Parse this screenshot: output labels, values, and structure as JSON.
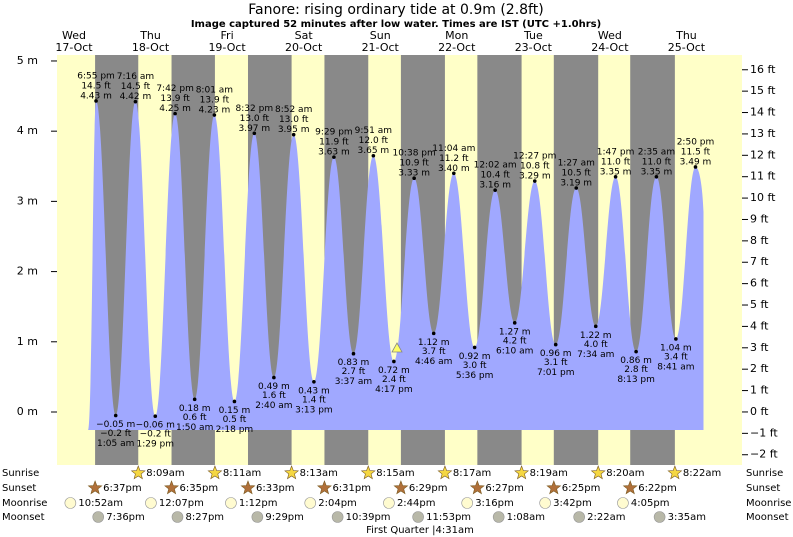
{
  "chart_data": {
    "type": "tide",
    "title": "Fanore: rising  ordinary tide at 0.9m (2.8ft)",
    "subtitle": "Image captured 52 minutes after low water. Times are IST (UTC +1.0hrs)",
    "ylim": [
      -0.755,
      5.085
    ],
    "yticks": [
      {
        "value": 0,
        "label": "0 m"
      },
      {
        "value": 1,
        "label": "1 m"
      },
      {
        "value": 2,
        "label": "2 m"
      },
      {
        "value": 3,
        "label": "3 m"
      },
      {
        "value": 4,
        "label": "4 m"
      },
      {
        "value": 5,
        "label": "5 m"
      }
    ],
    "y2lim": [
      -2.48,
      16.69
    ],
    "y2ticks": [
      {
        "value": -2,
        "label": "−2 ft"
      },
      {
        "value": -1,
        "label": "−1 ft"
      },
      {
        "value": 0,
        "label": "0 ft"
      },
      {
        "value": 1,
        "label": "1 ft"
      },
      {
        "value": 2,
        "label": "2 ft"
      },
      {
        "value": 3,
        "label": "3 ft"
      },
      {
        "value": 4,
        "label": "4 ft"
      },
      {
        "value": 5,
        "label": "5 ft"
      },
      {
        "value": 6,
        "label": "6 ft"
      },
      {
        "value": 7,
        "label": "7 ft"
      },
      {
        "value": 8,
        "label": "8 ft"
      },
      {
        "value": 9,
        "label": "9 ft"
      },
      {
        "value": 10,
        "label": "10 ft"
      },
      {
        "value": 11,
        "label": "11 ft"
      },
      {
        "value": 12,
        "label": "12 ft"
      },
      {
        "value": 13,
        "label": "13 ft"
      },
      {
        "value": 14,
        "label": "14 ft"
      },
      {
        "value": 15,
        "label": "15 ft"
      },
      {
        "value": 16,
        "label": "16 ft"
      }
    ],
    "color": "#a0a8ff",
    "rows": [
      "Sunrise",
      "Sunset",
      "Moonrise",
      "Moonset"
    ],
    "moon_phase": "First Quarter |4:31am",
    "days": [
      {
        "name": "Wed",
        "date": "17-Oct",
        "color": "#ff0000",
        "sunset": "6:37pm",
        "moonrise": "10:52am",
        "moonset": "7:36pm",
        "tides": [
          {
            "time": "6:55 pm",
            "m": 4.43,
            "m_label": "4.43 m",
            "ft_label": "14.5 ft"
          }
        ]
      },
      {
        "name": "Thu",
        "date": "18-Oct",
        "color": "#000000",
        "sunrise": "8:09am",
        "sunset": "6:35pm",
        "moonrise": "12:07pm",
        "moonset": "8:27pm",
        "tides": [
          {
            "time": "1:05 am",
            "m": -0.05,
            "m_label": "−0.05 m",
            "ft_label": "−0.2 ft"
          },
          {
            "time": "7:16 am",
            "m": 4.42,
            "m_label": "4.42 m",
            "ft_label": "14.5 ft"
          },
          {
            "time": "1:29 pm",
            "m": -0.06,
            "m_label": "−0.06 m",
            "ft_label": "−0.2 ft"
          },
          {
            "time": "7:42 pm",
            "m": 4.25,
            "m_label": "4.25 m",
            "ft_label": "13.9 ft"
          }
        ]
      },
      {
        "name": "Fri",
        "date": "19-Oct",
        "color": "#ff0000",
        "sunrise": "8:11am",
        "sunset": "6:33pm",
        "moonrise": "1:12pm",
        "moonset": "9:29pm",
        "tides": [
          {
            "time": "1:50 am",
            "m": 0.18,
            "m_label": "0.18 m",
            "ft_label": "0.6 ft"
          },
          {
            "time": "8:01 am",
            "m": 4.23,
            "m_label": "4.23 m",
            "ft_label": "13.9 ft"
          },
          {
            "time": "2:18 pm",
            "m": 0.15,
            "m_label": "0.15 m",
            "ft_label": "0.5 ft"
          },
          {
            "time": "8:32 pm",
            "m": 3.97,
            "m_label": "3.97 m",
            "ft_label": "13.0 ft"
          }
        ]
      },
      {
        "name": "Sat",
        "date": "20-Oct",
        "color": "#ff0000",
        "sunrise": "8:13am",
        "sunset": "6:31pm",
        "moonrise": "2:04pm",
        "moonset": "10:39pm",
        "tides": [
          {
            "time": "2:40 am",
            "m": 0.49,
            "m_label": "0.49 m",
            "ft_label": "1.6 ft"
          },
          {
            "time": "8:52 am",
            "m": 3.95,
            "m_label": "3.95 m",
            "ft_label": "13.0 ft"
          },
          {
            "time": "3:13 pm",
            "m": 0.43,
            "m_label": "0.43 m",
            "ft_label": "1.4 ft"
          },
          {
            "time": "9:29 pm",
            "m": 3.63,
            "m_label": "3.63 m",
            "ft_label": "11.9 ft"
          }
        ]
      },
      {
        "name": "Sun",
        "date": "21-Oct",
        "color": "#ff0000",
        "sunrise": "8:15am",
        "sunset": "6:29pm",
        "moonrise": "2:44pm",
        "moonset": "11:53pm",
        "tides": [
          {
            "time": "3:37 am",
            "m": 0.83,
            "m_label": "0.83 m",
            "ft_label": "2.7 ft"
          },
          {
            "time": "9:51 am",
            "m": 3.65,
            "m_label": "3.65 m",
            "ft_label": "12.0 ft"
          },
          {
            "time": "4:17 pm",
            "m": 0.72,
            "m_label": "0.72 m",
            "ft_label": "2.4 ft"
          },
          {
            "time": "10:38 pm",
            "m": 3.33,
            "m_label": "3.33 m",
            "ft_label": "10.9 ft"
          }
        ]
      },
      {
        "name": "Mon",
        "date": "22-Oct",
        "color": "#ff0000",
        "sunrise": "8:17am",
        "sunset": "6:27pm",
        "moonrise": "3:16pm",
        "tides": [
          {
            "time": "4:46 am",
            "m": 1.12,
            "m_label": "1.12 m",
            "ft_label": "3.7 ft"
          },
          {
            "time": "11:04 am",
            "m": 3.4,
            "m_label": "3.40 m",
            "ft_label": "11.2 ft"
          },
          {
            "time": "5:36 pm",
            "m": 0.92,
            "m_label": "0.92 m",
            "ft_label": "3.0 ft"
          }
        ]
      },
      {
        "name": "Tue",
        "date": "23-Oct",
        "color": "#000000",
        "sunrise": "8:19am",
        "sunset": "6:25pm",
        "moonrise": "3:42pm",
        "moonset": "1:08am",
        "tides": [
          {
            "time": "12:02 am",
            "m": 3.16,
            "m_label": "3.16 m",
            "ft_label": "10.4 ft"
          },
          {
            "time": "6:10 am",
            "m": 1.27,
            "m_label": "1.27 m",
            "ft_label": "4.2 ft"
          },
          {
            "time": "12:27 pm",
            "m": 3.29,
            "m_label": "3.29 m",
            "ft_label": "10.8 ft"
          },
          {
            "time": "7:01 pm",
            "m": 0.96,
            "m_label": "0.96 m",
            "ft_label": "3.1 ft"
          }
        ]
      },
      {
        "name": "Wed",
        "date": "24-Oct",
        "color": "#ff0000",
        "sunrise": "8:20am",
        "sunset": "6:22pm",
        "moonrise": "4:05pm",
        "moonset": "2:22am",
        "tides": [
          {
            "time": "1:27 am",
            "m": 3.19,
            "m_label": "3.19 m",
            "ft_label": "10.5 ft"
          },
          {
            "time": "7:34 am",
            "m": 1.22,
            "m_label": "1.22 m",
            "ft_label": "4.0 ft"
          },
          {
            "time": "1:47 pm",
            "m": 3.35,
            "m_label": "3.35 m",
            "ft_label": "11.0 ft"
          },
          {
            "time": "8:13 pm",
            "m": 0.86,
            "m_label": "0.86 m",
            "ft_label": "2.8 ft"
          }
        ]
      },
      {
        "name": "Thu",
        "date": "25-Oct",
        "color": "#000000",
        "sunrise": "8:22am",
        "moonset": "3:35am",
        "tides": [
          {
            "time": "2:35 am",
            "m": 3.35,
            "m_label": "3.35 m",
            "ft_label": "11.0 ft"
          },
          {
            "time": "8:41 am",
            "m": 1.04,
            "m_label": "1.04 m",
            "ft_label": "3.4 ft"
          },
          {
            "time": "2:50 pm",
            "m": 3.49,
            "m_label": "3.49 m",
            "ft_label": "11.5 ft"
          }
        ]
      }
    ]
  }
}
